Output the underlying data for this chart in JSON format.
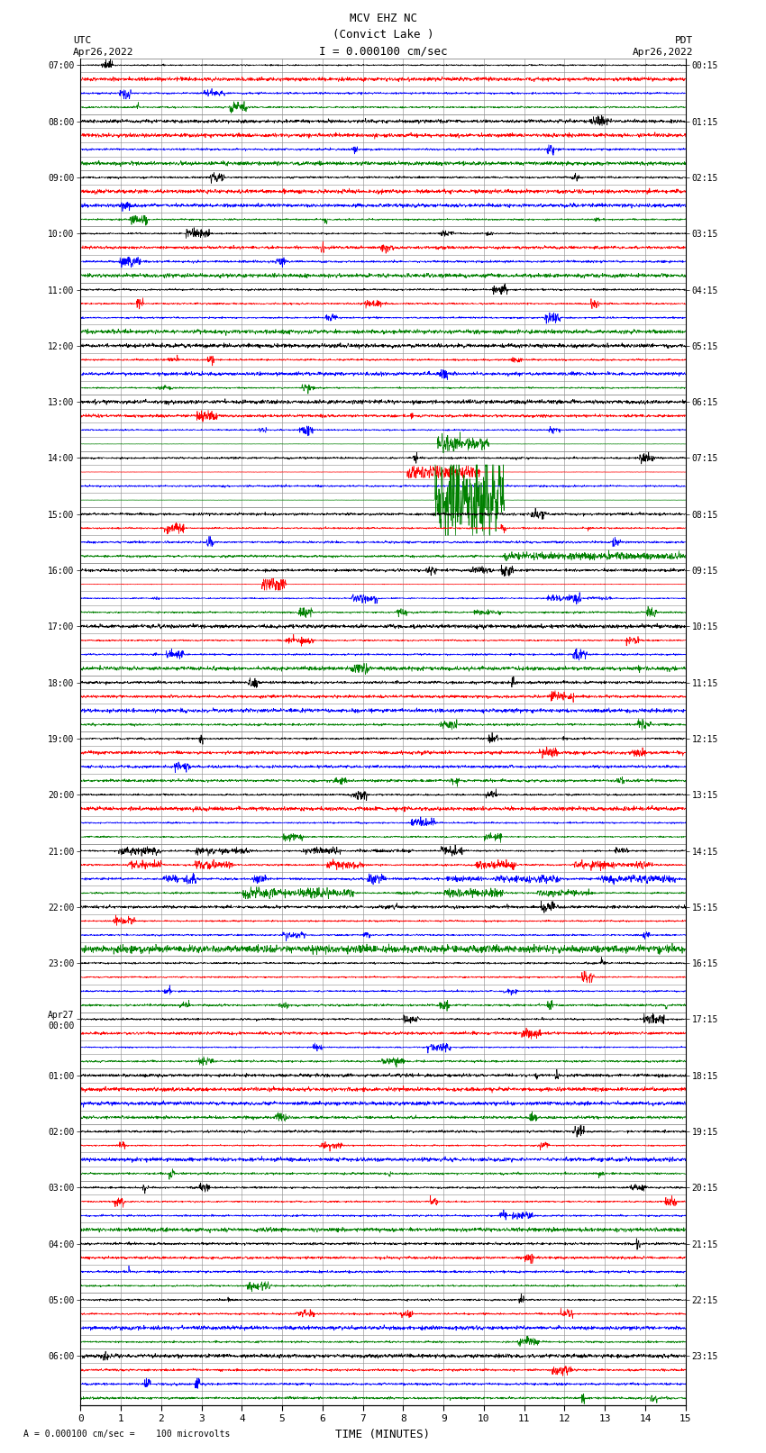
{
  "title_line1": "MCV EHZ NC",
  "title_line2": "(Convict Lake )",
  "title_line3": "I = 0.000100 cm/sec",
  "left_header_line1": "UTC",
  "left_header_line2": "Apr26,2022",
  "right_header_line1": "PDT",
  "right_header_line2": "Apr26,2022",
  "bottom_label": "TIME (MINUTES)",
  "bottom_note": "= 0.000100 cm/sec =    100 microvolts",
  "xlim": [
    0,
    15
  ],
  "xticks": [
    0,
    1,
    2,
    3,
    4,
    5,
    6,
    7,
    8,
    9,
    10,
    11,
    12,
    13,
    14,
    15
  ],
  "n_hours": 24,
  "n_subrows_per_hour": 4,
  "background_color": "#ffffff",
  "grid_color": "#888888",
  "trace_colors": [
    "black",
    "red",
    "blue",
    "green"
  ],
  "left_times_utc": [
    "07:00",
    "",
    "",
    "",
    "08:00",
    "",
    "",
    "",
    "09:00",
    "",
    "",
    "",
    "10:00",
    "",
    "",
    "",
    "11:00",
    "",
    "",
    "",
    "12:00",
    "",
    "",
    "",
    "13:00",
    "",
    "",
    "",
    "14:00",
    "",
    "",
    "",
    "15:00",
    "",
    "",
    "",
    "16:00",
    "",
    "",
    "",
    "17:00",
    "",
    "",
    "",
    "18:00",
    "",
    "",
    "",
    "19:00",
    "",
    "",
    "",
    "20:00",
    "",
    "",
    "",
    "21:00",
    "",
    "",
    "",
    "22:00",
    "",
    "",
    "",
    "23:00",
    "",
    "",
    "",
    "Apr27\n00:00",
    "",
    "",
    "",
    "01:00",
    "",
    "",
    "",
    "02:00",
    "",
    "",
    "",
    "03:00",
    "",
    "",
    "",
    "04:00",
    "",
    "",
    "",
    "05:00",
    "",
    "",
    "",
    "06:00",
    "",
    "",
    ""
  ],
  "right_times_pdt": [
    "00:15",
    "",
    "",
    "",
    "01:15",
    "",
    "",
    "",
    "02:15",
    "",
    "",
    "",
    "03:15",
    "",
    "",
    "",
    "04:15",
    "",
    "",
    "",
    "05:15",
    "",
    "",
    "",
    "06:15",
    "",
    "",
    "",
    "07:15",
    "",
    "",
    "",
    "08:15",
    "",
    "",
    "",
    "09:15",
    "",
    "",
    "",
    "10:15",
    "",
    "",
    "",
    "11:15",
    "",
    "",
    "",
    "12:15",
    "",
    "",
    "",
    "13:15",
    "",
    "",
    "",
    "14:15",
    "",
    "",
    "",
    "15:15",
    "",
    "",
    "",
    "16:15",
    "",
    "",
    "",
    "17:15",
    "",
    "",
    "",
    "18:15",
    "",
    "",
    "",
    "19:15",
    "",
    "",
    "",
    "20:15",
    "",
    "",
    "",
    "21:15",
    "",
    "",
    "",
    "22:15",
    "",
    "",
    "",
    "23:15",
    "",
    "",
    ""
  ]
}
